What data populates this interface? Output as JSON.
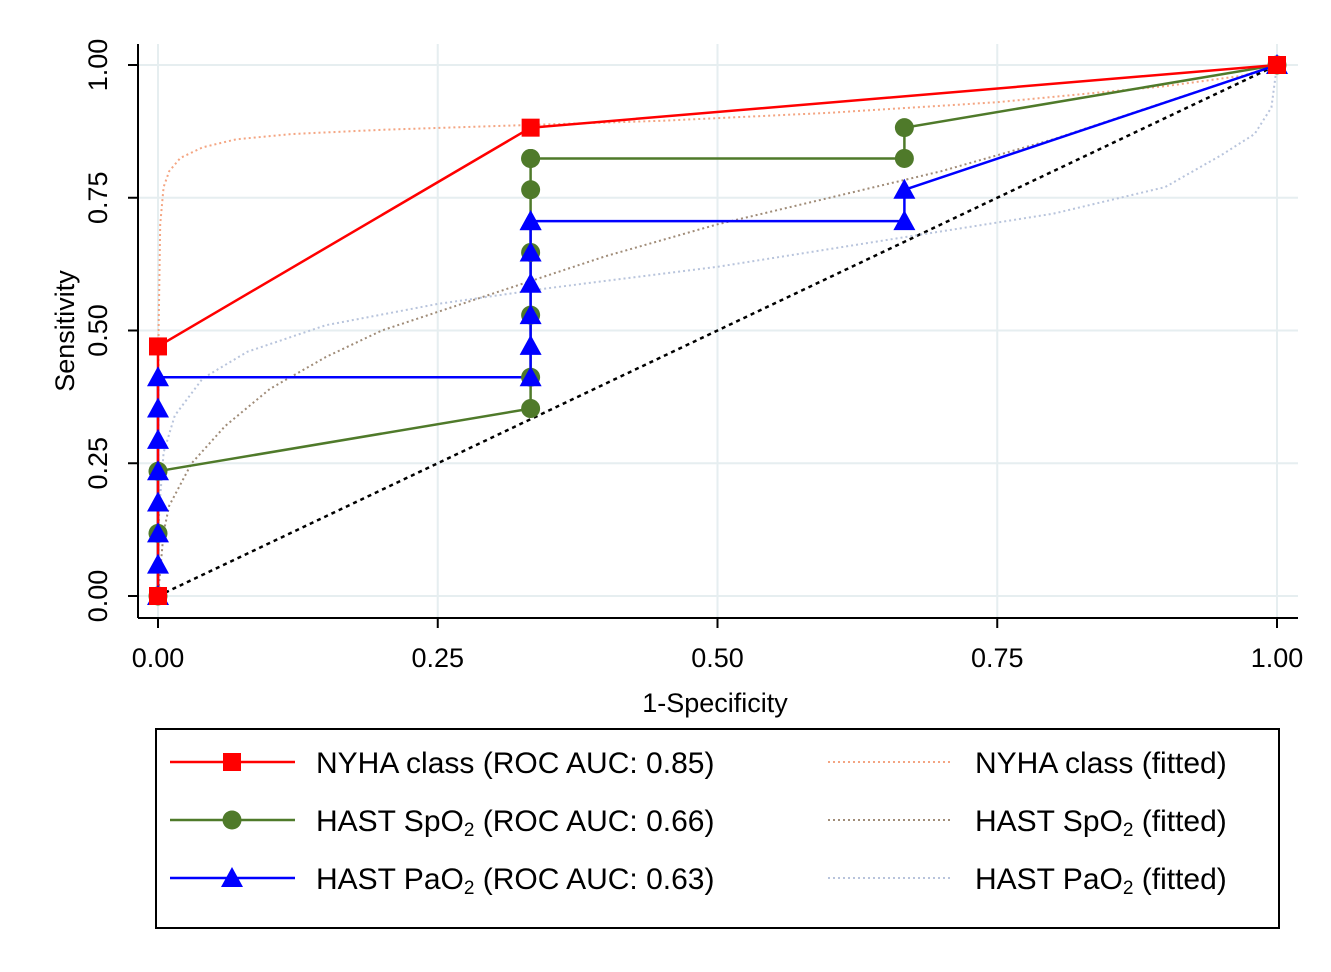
{
  "chart_data": {
    "type": "line",
    "title": "",
    "xlabel": "1-Specificity",
    "ylabel": "Sensitivity",
    "xlim": [
      0,
      1
    ],
    "ylim": [
      0,
      1
    ],
    "x_ticks": [
      "0.00",
      "0.25",
      "0.50",
      "0.75",
      "1.00"
    ],
    "y_ticks": [
      "0.00",
      "0.25",
      "0.50",
      "0.75",
      "1.00"
    ],
    "tick_values": [
      0,
      0.25,
      0.5,
      0.75,
      1
    ],
    "grid": true,
    "legend_position": "bottom",
    "reference_line": {
      "x": [
        0,
        1
      ],
      "y": [
        0,
        1
      ],
      "color": "#000000",
      "style": "dotted"
    },
    "series": [
      {
        "name": "NYHA class (ROC AUC: 0.85)",
        "label_main": "NYHA class (ROC AUC: 0.85)",
        "color": "#ff0000",
        "marker": "square",
        "x": [
          0,
          0,
          0.333,
          1
        ],
        "y": [
          0,
          0.47,
          0.882,
          1
        ]
      },
      {
        "name": "HAST SpO2 (ROC AUC: 0.66)",
        "label_pre": "HAST SpO",
        "label_sub": "2",
        "label_post": " (ROC AUC: 0.66)",
        "color": "#4f7a2a",
        "marker": "circle",
        "x": [
          0,
          0,
          0,
          0.333,
          0.333,
          0.333,
          0.333,
          0.333,
          0.333,
          0.333,
          0.667,
          0.667,
          1
        ],
        "y": [
          0,
          0.118,
          0.235,
          0.353,
          0.412,
          0.529,
          0.647,
          0.765,
          0.824,
          0.824,
          0.824,
          0.882,
          1
        ]
      },
      {
        "name": "HAST PaO2 (ROC AUC: 0.63)",
        "label_pre": "HAST PaO",
        "label_sub": "2",
        "label_post": " (ROC AUC: 0.63)",
        "color": "#0000ff",
        "marker": "triangle",
        "x": [
          0,
          0,
          0,
          0,
          0,
          0,
          0,
          0,
          0.333,
          0.333,
          0.333,
          0.333,
          0.333,
          0.333,
          0.333,
          0.667,
          0.667,
          1
        ],
        "y": [
          0,
          0.059,
          0.118,
          0.176,
          0.235,
          0.294,
          0.353,
          0.412,
          0.412,
          0.471,
          0.529,
          0.588,
          0.647,
          0.706,
          0.706,
          0.706,
          0.765,
          1
        ]
      }
    ],
    "fitted": [
      {
        "name": "NYHA class (fitted)",
        "label_main": "NYHA class (fitted)",
        "color": "#f4a582",
        "x": [
          0,
          0.0005,
          0.002,
          0.005,
          0.01,
          0.02,
          0.04,
          0.07,
          0.12,
          0.2,
          0.3,
          0.45,
          0.6,
          0.75,
          0.9,
          0.97,
          1
        ],
        "y": [
          0,
          0.5,
          0.7,
          0.77,
          0.8,
          0.825,
          0.845,
          0.86,
          0.87,
          0.878,
          0.885,
          0.895,
          0.91,
          0.93,
          0.96,
          0.98,
          1
        ]
      },
      {
        "name": "HAST SpO2 (fitted)",
        "label_pre": "HAST SpO",
        "label_sub": "2",
        "label_post": " (fitted)",
        "color": "#a08c78",
        "x": [
          0,
          0.005,
          0.01,
          0.03,
          0.06,
          0.1,
          0.15,
          0.2,
          0.3,
          0.4,
          0.5,
          0.6,
          0.7,
          0.8,
          0.9,
          1
        ],
        "y": [
          0,
          0.12,
          0.17,
          0.25,
          0.32,
          0.39,
          0.45,
          0.5,
          0.57,
          0.64,
          0.7,
          0.75,
          0.8,
          0.86,
          0.93,
          1
        ]
      },
      {
        "name": "HAST PaO2 (fitted)",
        "label_pre": "HAST PaO",
        "label_sub": "2",
        "label_post": " (fitted)",
        "color": "#b8c4dc",
        "x": [
          0,
          0.001,
          0.005,
          0.015,
          0.04,
          0.08,
          0.15,
          0.25,
          0.35,
          0.5,
          0.65,
          0.8,
          0.9,
          0.95,
          0.98,
          0.995,
          1
        ],
        "y": [
          0,
          0.16,
          0.27,
          0.34,
          0.41,
          0.46,
          0.51,
          0.55,
          0.58,
          0.62,
          0.67,
          0.72,
          0.77,
          0.83,
          0.87,
          0.92,
          1
        ]
      }
    ]
  }
}
